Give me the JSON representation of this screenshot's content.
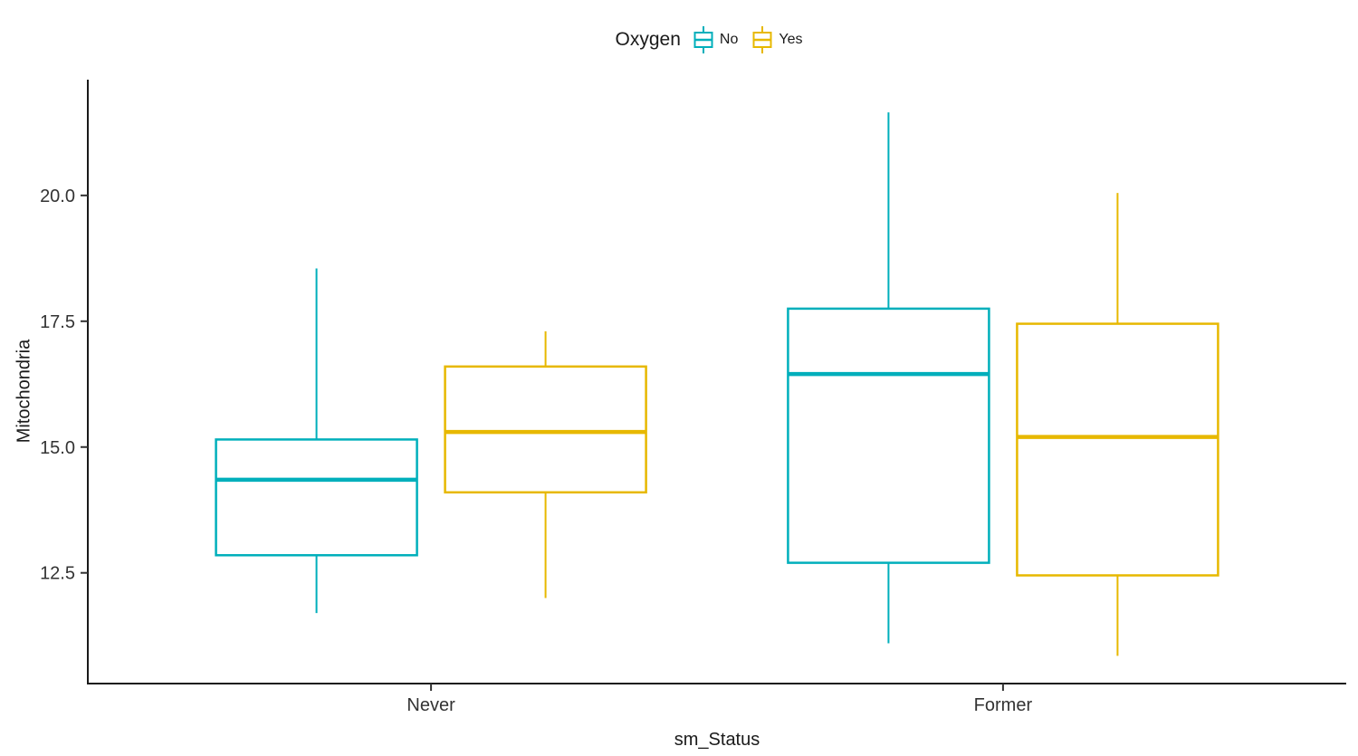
{
  "chart_data": {
    "type": "boxplot",
    "title": "",
    "xlabel": "sm_Status",
    "ylabel": "Mitochondria",
    "categories": [
      "Never",
      "Former"
    ],
    "y_ticks": [
      12.5,
      15.0,
      17.5,
      20.0
    ],
    "ylim": [
      10.3,
      22.3
    ],
    "grid": false,
    "legend": {
      "title": "Oxygen",
      "position": "top"
    },
    "axis_color": "#1a1a1a",
    "tick_label_color": "#333333",
    "series": [
      {
        "name": "No",
        "color": "#00AFBB",
        "boxes": [
          {
            "category": "Never",
            "min": 11.7,
            "q1": 12.85,
            "median": 14.35,
            "q3": 15.15,
            "max": 18.55
          },
          {
            "category": "Former",
            "min": 11.1,
            "q1": 12.7,
            "median": 16.45,
            "q3": 17.75,
            "max": 21.65
          }
        ]
      },
      {
        "name": "Yes",
        "color": "#E7B800",
        "boxes": [
          {
            "category": "Never",
            "min": 12.0,
            "q1": 14.1,
            "median": 15.3,
            "q3": 16.6,
            "max": 17.3
          },
          {
            "category": "Former",
            "min": 10.85,
            "q1": 12.45,
            "median": 15.2,
            "q3": 17.45,
            "max": 20.05
          }
        ]
      }
    ]
  }
}
